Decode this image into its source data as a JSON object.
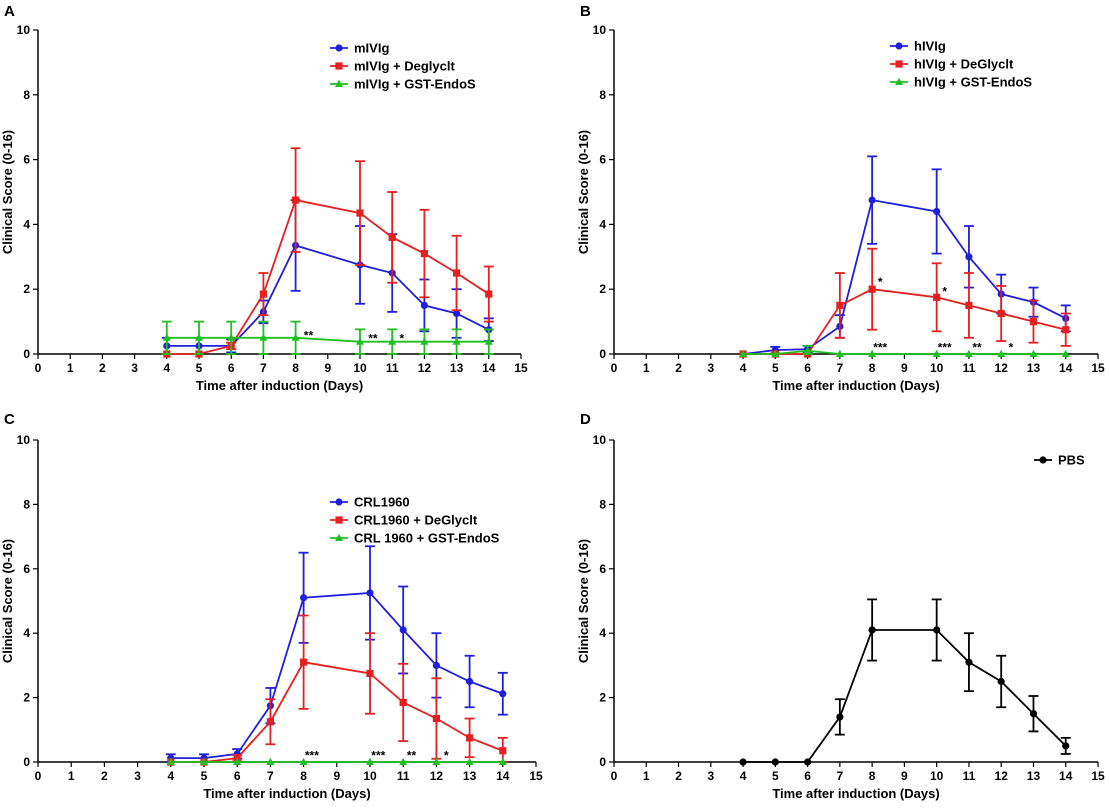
{
  "figure": {
    "panels": [
      {
        "letter": "A",
        "xlabel": "Time after induction (Days)",
        "ylabel": "Clinical Score (0-16)"
      },
      {
        "letter": "B",
        "xlabel": "Time after induction (Days)",
        "ylabel": "Clinical Score (0-16)"
      },
      {
        "letter": "C",
        "xlabel": "Time after induction (Days)",
        "ylabel": "Clinical Score (0-16)"
      },
      {
        "letter": "D",
        "xlabel": "Time after induction (Days)",
        "ylabel": "Clinical Score (0-16)"
      }
    ]
  },
  "chart_data": [
    {
      "type": "line",
      "panel": "A",
      "xlabel": "Time after induction (Days)",
      "ylabel": "Clinical Score (0-16)",
      "xlim": [
        0,
        15
      ],
      "ylim": [
        0,
        10
      ],
      "xticks": [
        0,
        1,
        2,
        3,
        4,
        5,
        6,
        7,
        8,
        9,
        10,
        11,
        12,
        13,
        14,
        15
      ],
      "yticks": [
        0,
        2,
        4,
        6,
        8,
        10
      ],
      "legend_position": "top-right",
      "series": [
        {
          "name": "mIVIg",
          "color": "#1f1fdc",
          "marker": "circle",
          "x": [
            4,
            5,
            6,
            7,
            8,
            10,
            11,
            12,
            13,
            14
          ],
          "y": [
            0.25,
            0.25,
            0.25,
            1.3,
            3.35,
            2.75,
            2.5,
            1.5,
            1.25,
            0.75
          ],
          "err": [
            0.25,
            0.25,
            0.2,
            0.35,
            1.4,
            1.2,
            1.2,
            0.8,
            0.75,
            0.35
          ]
        },
        {
          "name": "mIVIg + Deglyclt",
          "color": "#e42020",
          "marker": "square",
          "x": [
            4,
            5,
            6,
            7,
            8,
            10,
            11,
            12,
            13,
            14
          ],
          "y": [
            0,
            0,
            0.25,
            1.85,
            4.75,
            4.35,
            3.6,
            3.1,
            2.5,
            1.85
          ],
          "err": [
            0,
            0,
            0.1,
            0.65,
            1.6,
            1.6,
            1.4,
            1.35,
            1.15,
            0.85
          ]
        },
        {
          "name": "mIVIg + GST-EndoS",
          "color": "#1fbf1f",
          "marker": "triangle",
          "x": [
            4,
            5,
            6,
            7,
            8,
            10,
            11,
            12,
            13,
            14
          ],
          "y": [
            0.5,
            0.5,
            0.5,
            0.5,
            0.5,
            0.38,
            0.38,
            0.38,
            0.38,
            0.38
          ],
          "err": [
            0.5,
            0.5,
            0.5,
            0.5,
            0.5,
            0.38,
            0.38,
            0.38,
            0.38,
            0.38
          ]
        }
      ],
      "annotations": [
        {
          "x": 8.4,
          "y": 0.45,
          "text": "**"
        },
        {
          "x": 10.4,
          "y": 0.35,
          "text": "**"
        },
        {
          "x": 11.3,
          "y": 0.35,
          "text": "*"
        }
      ]
    },
    {
      "type": "line",
      "panel": "B",
      "xlabel": "Time after induction (Days)",
      "ylabel": "Clinical Score (0-16)",
      "xlim": [
        0,
        15
      ],
      "ylim": [
        0,
        10
      ],
      "xticks": [
        0,
        1,
        2,
        3,
        4,
        5,
        6,
        7,
        8,
        9,
        10,
        11,
        12,
        13,
        14,
        15
      ],
      "yticks": [
        0,
        2,
        4,
        6,
        8,
        10
      ],
      "legend_position": "top-right",
      "series": [
        {
          "name": "hIVIg",
          "color": "#1f1fdc",
          "marker": "circle",
          "x": [
            4,
            5,
            6,
            7,
            8,
            10,
            11,
            12,
            13,
            14
          ],
          "y": [
            0,
            0.12,
            0.15,
            0.85,
            4.75,
            4.4,
            3.0,
            1.85,
            1.6,
            1.1
          ],
          "err": [
            0,
            0.1,
            0.1,
            0.35,
            1.35,
            1.3,
            0.95,
            0.6,
            0.45,
            0.4
          ]
        },
        {
          "name": "hIVIg + DeGlyclt",
          "color": "#e42020",
          "marker": "square",
          "x": [
            4,
            5,
            6,
            7,
            8,
            10,
            11,
            12,
            13,
            14
          ],
          "y": [
            0,
            0,
            0,
            1.5,
            2.0,
            1.75,
            1.5,
            1.25,
            1.0,
            0.75
          ],
          "err": [
            0,
            0,
            0,
            1.0,
            1.25,
            1.05,
            1.0,
            0.85,
            0.65,
            0.5
          ]
        },
        {
          "name": "hIVIg + GST-EndoS",
          "color": "#1fbf1f",
          "marker": "triangle",
          "x": [
            4,
            5,
            6,
            7,
            8,
            10,
            11,
            12,
            13,
            14
          ],
          "y": [
            0,
            0,
            0.1,
            0,
            0,
            0,
            0,
            0,
            0,
            0
          ],
          "err": [
            0,
            0,
            0.15,
            0,
            0,
            0,
            0,
            0,
            0,
            0
          ]
        }
      ],
      "annotations": [
        {
          "x": 8.25,
          "y": 2.1,
          "text": "*"
        },
        {
          "x": 10.25,
          "y": 1.8,
          "text": "*"
        },
        {
          "x": 8.25,
          "y": 0.07,
          "text": "***"
        },
        {
          "x": 10.25,
          "y": 0.07,
          "text": "***"
        },
        {
          "x": 11.25,
          "y": 0.07,
          "text": "**"
        },
        {
          "x": 12.3,
          "y": 0.07,
          "text": "*"
        }
      ]
    },
    {
      "type": "line",
      "panel": "C",
      "xlabel": "Time after induction (Days)",
      "ylabel": "Clinical Score (0-16)",
      "xlim": [
        0,
        15
      ],
      "ylim": [
        0,
        10
      ],
      "xticks": [
        0,
        1,
        2,
        3,
        4,
        5,
        6,
        7,
        8,
        9,
        10,
        11,
        12,
        13,
        14,
        15
      ],
      "yticks": [
        0,
        2,
        4,
        6,
        8,
        10
      ],
      "legend_position": "top-right",
      "series": [
        {
          "name": "CRL1960",
          "color": "#1f1fdc",
          "marker": "circle",
          "x": [
            4,
            5,
            6,
            7,
            8,
            10,
            11,
            12,
            13,
            14
          ],
          "y": [
            0.12,
            0.12,
            0.25,
            1.75,
            5.1,
            5.25,
            4.1,
            3.0,
            2.5,
            2.12
          ],
          "err": [
            0.12,
            0.12,
            0.15,
            0.55,
            1.4,
            1.45,
            1.35,
            1.0,
            0.8,
            0.65
          ]
        },
        {
          "name": "CRL1960 + DeGlyclt",
          "color": "#e42020",
          "marker": "square",
          "x": [
            4,
            5,
            6,
            7,
            8,
            10,
            11,
            12,
            13,
            14
          ],
          "y": [
            0,
            0,
            0.12,
            1.25,
            3.1,
            2.75,
            1.85,
            1.35,
            0.75,
            0.35
          ],
          "err": [
            0,
            0,
            0.1,
            0.7,
            1.45,
            1.25,
            1.2,
            1.25,
            0.6,
            0.4
          ]
        },
        {
          "name": "CRL 1960 + GST-EndoS",
          "color": "#1fbf1f",
          "marker": "triangle",
          "x": [
            4,
            5,
            6,
            7,
            8,
            10,
            11,
            12,
            13,
            14
          ],
          "y": [
            0,
            0,
            0,
            0,
            0,
            0,
            0,
            0,
            0,
            0
          ],
          "err": [
            0,
            0,
            0,
            0,
            0,
            0,
            0,
            0,
            0,
            0
          ]
        }
      ],
      "annotations": [
        {
          "x": 8.25,
          "y": 0.07,
          "text": "***"
        },
        {
          "x": 10.25,
          "y": 0.07,
          "text": "***"
        },
        {
          "x": 11.25,
          "y": 0.07,
          "text": "**"
        },
        {
          "x": 12.3,
          "y": 0.07,
          "text": "*"
        }
      ]
    },
    {
      "type": "line",
      "panel": "D",
      "xlabel": "Time after induction (Days)",
      "ylabel": "Clinical Score (0-16)",
      "xlim": [
        0,
        15
      ],
      "ylim": [
        0,
        10
      ],
      "xticks": [
        0,
        1,
        2,
        3,
        4,
        5,
        6,
        7,
        8,
        9,
        10,
        11,
        12,
        13,
        14,
        15
      ],
      "yticks": [
        0,
        2,
        4,
        6,
        8,
        10
      ],
      "legend_position": "top-right",
      "series": [
        {
          "name": "PBS",
          "color": "#000000",
          "marker": "circle",
          "x": [
            4,
            5,
            6,
            7,
            8,
            10,
            11,
            12,
            13,
            14
          ],
          "y": [
            0,
            0,
            0,
            1.4,
            4.1,
            4.1,
            3.1,
            2.5,
            1.5,
            0.5
          ],
          "err": [
            0,
            0,
            0,
            0.55,
            0.95,
            0.95,
            0.9,
            0.8,
            0.55,
            0.25
          ]
        }
      ],
      "annotations": []
    }
  ]
}
